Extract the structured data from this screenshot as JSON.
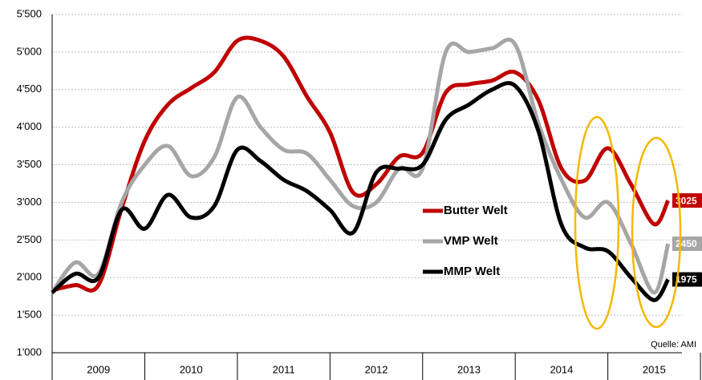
{
  "chart_data": {
    "type": "line",
    "x": [
      2009.0,
      2009.25,
      2009.5,
      2009.75,
      2010.0,
      2010.25,
      2010.5,
      2010.75,
      2011.0,
      2011.25,
      2011.5,
      2011.75,
      2012.0,
      2012.25,
      2012.5,
      2012.75,
      2013.0,
      2013.25,
      2013.5,
      2013.75,
      2014.0,
      2014.25,
      2014.5,
      2014.75,
      2015.0,
      2015.25,
      2015.5,
      2015.65
    ],
    "series": [
      {
        "name": "Butter Welt",
        "color": "#c00000",
        "values": [
          1830,
          1900,
          1900,
          2920,
          3820,
          4300,
          4520,
          4730,
          5150,
          5150,
          4940,
          4410,
          3930,
          3130,
          3240,
          3610,
          3660,
          4460,
          4570,
          4620,
          4730,
          4360,
          3450,
          3290,
          3720,
          3240,
          2710,
          3025
        ]
      },
      {
        "name": "VMP Welt",
        "color": "#a6a6a6",
        "values": [
          1800,
          2200,
          2050,
          3000,
          3500,
          3750,
          3350,
          3600,
          4400,
          4000,
          3700,
          3650,
          3300,
          2950,
          3000,
          3450,
          3450,
          5000,
          5000,
          5050,
          5100,
          4050,
          3300,
          2800,
          3000,
          2450,
          1800,
          2450
        ]
      },
      {
        "name": "MMP Welt",
        "color": "#000000",
        "values": [
          1800,
          2050,
          2000,
          2900,
          2650,
          3100,
          2800,
          2950,
          3700,
          3550,
          3300,
          3150,
          2900,
          2600,
          3400,
          3450,
          3500,
          4100,
          4300,
          4500,
          4550,
          3950,
          2700,
          2400,
          2350,
          2000,
          1700,
          1975
        ]
      }
    ],
    "xlim": [
      2009,
      2015.8
    ],
    "xticks": [
      {
        "value": 2009.5,
        "label": "2009"
      },
      {
        "value": 2010.5,
        "label": "2010"
      },
      {
        "value": 2011.5,
        "label": "2011"
      },
      {
        "value": 2012.5,
        "label": "2012"
      },
      {
        "value": 2013.5,
        "label": "2013"
      },
      {
        "value": 2014.5,
        "label": "2014"
      },
      {
        "value": 2015.5,
        "label": "2015"
      }
    ],
    "ylim": [
      1000,
      5500
    ],
    "yticks": [
      {
        "value": 1000,
        "label": "1'000"
      },
      {
        "value": 1500,
        "label": "1'500"
      },
      {
        "value": 2000,
        "label": "2'000"
      },
      {
        "value": 2500,
        "label": "2'500"
      },
      {
        "value": 3000,
        "label": "3'000"
      },
      {
        "value": 3500,
        "label": "3'500"
      },
      {
        "value": 4000,
        "label": "4'000"
      },
      {
        "value": 4500,
        "label": "4'500"
      },
      {
        "value": 5000,
        "label": "5'000"
      },
      {
        "value": 5500,
        "label": "5'500"
      }
    ],
    "grid": true,
    "source": "Quelle: AMI"
  }
}
